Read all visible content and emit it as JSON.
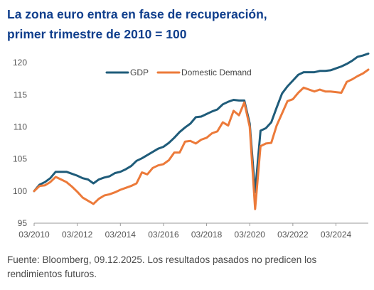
{
  "title": {
    "line1": "La zona euro entra en fase de recuperación,",
    "line2": "primer trimestre de 2010 = 100"
  },
  "source": {
    "line1": "Fuente: Bloomberg, 09.12.2025. Los resultados pasados no predicen los",
    "line2": "rendimientos futuros."
  },
  "colors": {
    "title": "#0f3e8c",
    "gdp": "#1f5c7a",
    "domestic": "#ec7a3a",
    "axis": "#9a9a9a",
    "text": "#555555"
  },
  "chart_data": {
    "type": "line",
    "ylim": [
      95,
      122
    ],
    "yticks": [
      95,
      100,
      105,
      110,
      115,
      120
    ],
    "xticks": [
      "03/2010",
      "03/2012",
      "03/2014",
      "03/2016",
      "03/2018",
      "03/2020",
      "03/2022",
      "03/2024"
    ],
    "x": [
      "03/2010",
      "06/2010",
      "09/2010",
      "12/2010",
      "03/2011",
      "06/2011",
      "09/2011",
      "12/2011",
      "03/2012",
      "06/2012",
      "09/2012",
      "12/2012",
      "03/2013",
      "06/2013",
      "09/2013",
      "12/2013",
      "03/2014",
      "06/2014",
      "09/2014",
      "12/2014",
      "03/2015",
      "06/2015",
      "09/2015",
      "12/2015",
      "03/2016",
      "06/2016",
      "09/2016",
      "12/2016",
      "03/2017",
      "06/2017",
      "09/2017",
      "12/2017",
      "03/2018",
      "06/2018",
      "09/2018",
      "12/2018",
      "03/2019",
      "06/2019",
      "09/2019",
      "12/2019",
      "03/2020",
      "06/2020",
      "09/2020",
      "12/2020",
      "03/2021",
      "06/2021",
      "09/2021",
      "12/2021",
      "03/2022",
      "06/2022",
      "09/2022",
      "12/2022",
      "03/2023",
      "06/2023",
      "09/2023",
      "12/2023",
      "03/2024",
      "06/2024",
      "09/2024",
      "12/2024",
      "03/2025",
      "06/2025",
      "09/2025"
    ],
    "legend_position": "top",
    "series": [
      {
        "name": "GDP",
        "color": "#1f5c7a",
        "values": [
          100.0,
          101.0,
          101.4,
          102.0,
          103.0,
          103.0,
          103.0,
          102.7,
          102.4,
          102.0,
          101.8,
          101.2,
          101.8,
          102.1,
          102.3,
          102.8,
          103.0,
          103.4,
          103.9,
          104.7,
          105.1,
          105.6,
          106.1,
          106.6,
          106.9,
          107.5,
          108.3,
          109.2,
          109.9,
          110.5,
          111.5,
          111.6,
          112.0,
          112.4,
          112.7,
          113.5,
          113.9,
          114.2,
          114.1,
          114.1,
          110.5,
          99.8,
          109.4,
          109.8,
          110.7,
          113.0,
          115.2,
          116.3,
          117.2,
          118.1,
          118.5,
          118.5,
          118.5,
          118.7,
          118.7,
          118.8,
          119.1,
          119.4,
          119.8,
          120.3,
          120.9,
          121.1,
          121.4
        ]
      },
      {
        "name": "Domestic Demand",
        "color": "#ec7a3a",
        "values": [
          100.0,
          100.8,
          100.9,
          101.4,
          102.2,
          101.8,
          101.4,
          100.7,
          99.9,
          99.0,
          98.5,
          98.0,
          98.8,
          99.3,
          99.5,
          99.8,
          100.2,
          100.5,
          100.8,
          101.2,
          102.9,
          102.6,
          103.6,
          104.0,
          104.2,
          104.8,
          106.0,
          106.0,
          107.7,
          107.8,
          107.4,
          108.0,
          108.3,
          109.0,
          109.3,
          110.7,
          110.2,
          112.5,
          111.8,
          113.8,
          110.0,
          97.2,
          107.0,
          107.4,
          107.5,
          110.2,
          112.1,
          114.0,
          114.3,
          115.3,
          116.1,
          115.8,
          115.5,
          115.8,
          115.5,
          115.5,
          115.4,
          115.3,
          117.0,
          117.4,
          117.9,
          118.3,
          118.9
        ]
      }
    ]
  }
}
